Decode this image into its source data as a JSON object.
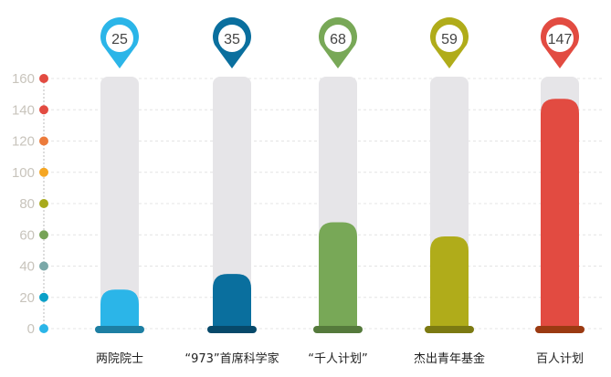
{
  "chart_data": {
    "type": "bar",
    "title": "",
    "xlabel": "",
    "ylabel": "",
    "ylim": [
      0,
      160
    ],
    "yticks": [
      "0",
      "20",
      "40",
      "60",
      "80",
      "100",
      "120",
      "140",
      "160"
    ],
    "tick_dot_colors": [
      "#2bb5e8",
      "#0aa0c8",
      "#7aa8a8",
      "#76a356",
      "#a8aa1c",
      "#f5a623",
      "#ec7b3b",
      "#e24b41",
      "#e24b41"
    ],
    "grid": true,
    "categories": [
      "两院院士",
      "“973”首席科学家",
      "“千人计划”",
      "杰出青年基金",
      "百人计划"
    ],
    "values": [
      25,
      35,
      68,
      59,
      147
    ],
    "value_labels": [
      "25",
      "35",
      "68",
      "59",
      "147"
    ],
    "colors": [
      "#2bb5e8",
      "#0a6f9e",
      "#78a857",
      "#b0ac1a",
      "#e24b41"
    ],
    "base_colors": [
      "#1d7fa3",
      "#07496a",
      "#557a3c",
      "#7c7a12",
      "#9b3a12"
    ],
    "track_color": "#e6e5e8"
  }
}
